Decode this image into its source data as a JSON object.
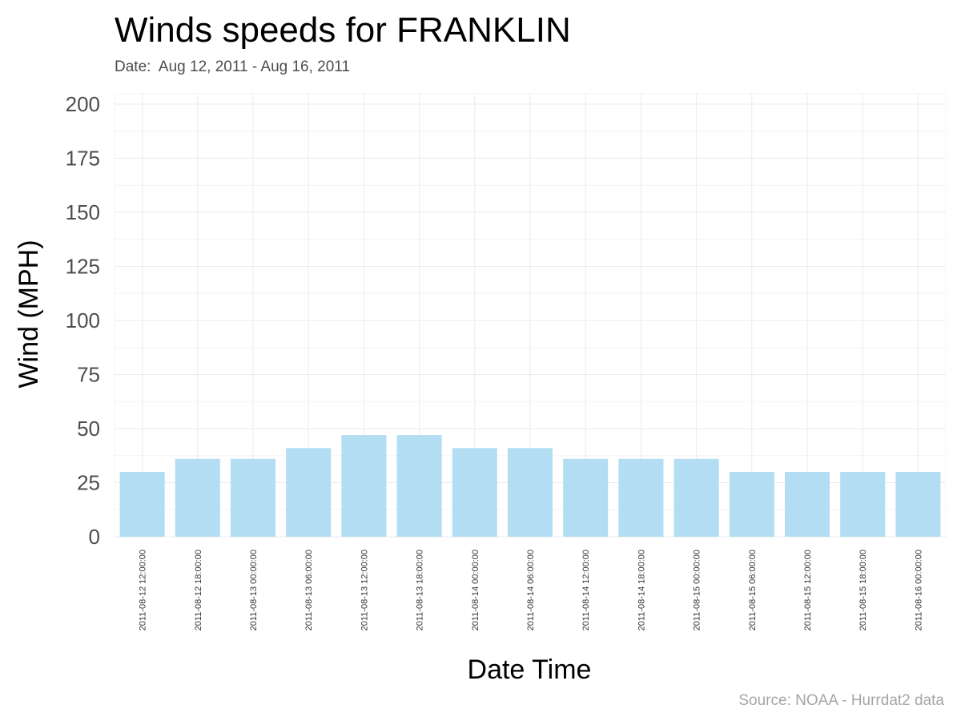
{
  "chart_data": {
    "type": "bar",
    "title": "Winds speeds for FRANKLIN",
    "subtitle": "Date:  Aug 12, 2011 - Aug 16, 2011",
    "xlabel": "Date Time",
    "ylabel": "Wind (MPH)",
    "caption": "Source: NOAA - Hurrdat2 data",
    "ylim": [
      0,
      200
    ],
    "yticks": [
      0,
      25,
      50,
      75,
      100,
      125,
      150,
      175,
      200
    ],
    "grid": true,
    "bar_color": "#b3ddf2",
    "categories": [
      "2011-08-12 12:00:00",
      "2011-08-12 18:00:00",
      "2011-08-13 00:00:00",
      "2011-08-13 06:00:00",
      "2011-08-13 12:00:00",
      "2011-08-13 18:00:00",
      "2011-08-14 00:00:00",
      "2011-08-14 06:00:00",
      "2011-08-14 12:00:00",
      "2011-08-14 18:00:00",
      "2011-08-15 00:00:00",
      "2011-08-15 06:00:00",
      "2011-08-15 12:00:00",
      "2011-08-15 18:00:00",
      "2011-08-16 00:00:00"
    ],
    "values": [
      30,
      36,
      36,
      41,
      47,
      47,
      41,
      41,
      36,
      36,
      36,
      30,
      30,
      30,
      30
    ]
  }
}
